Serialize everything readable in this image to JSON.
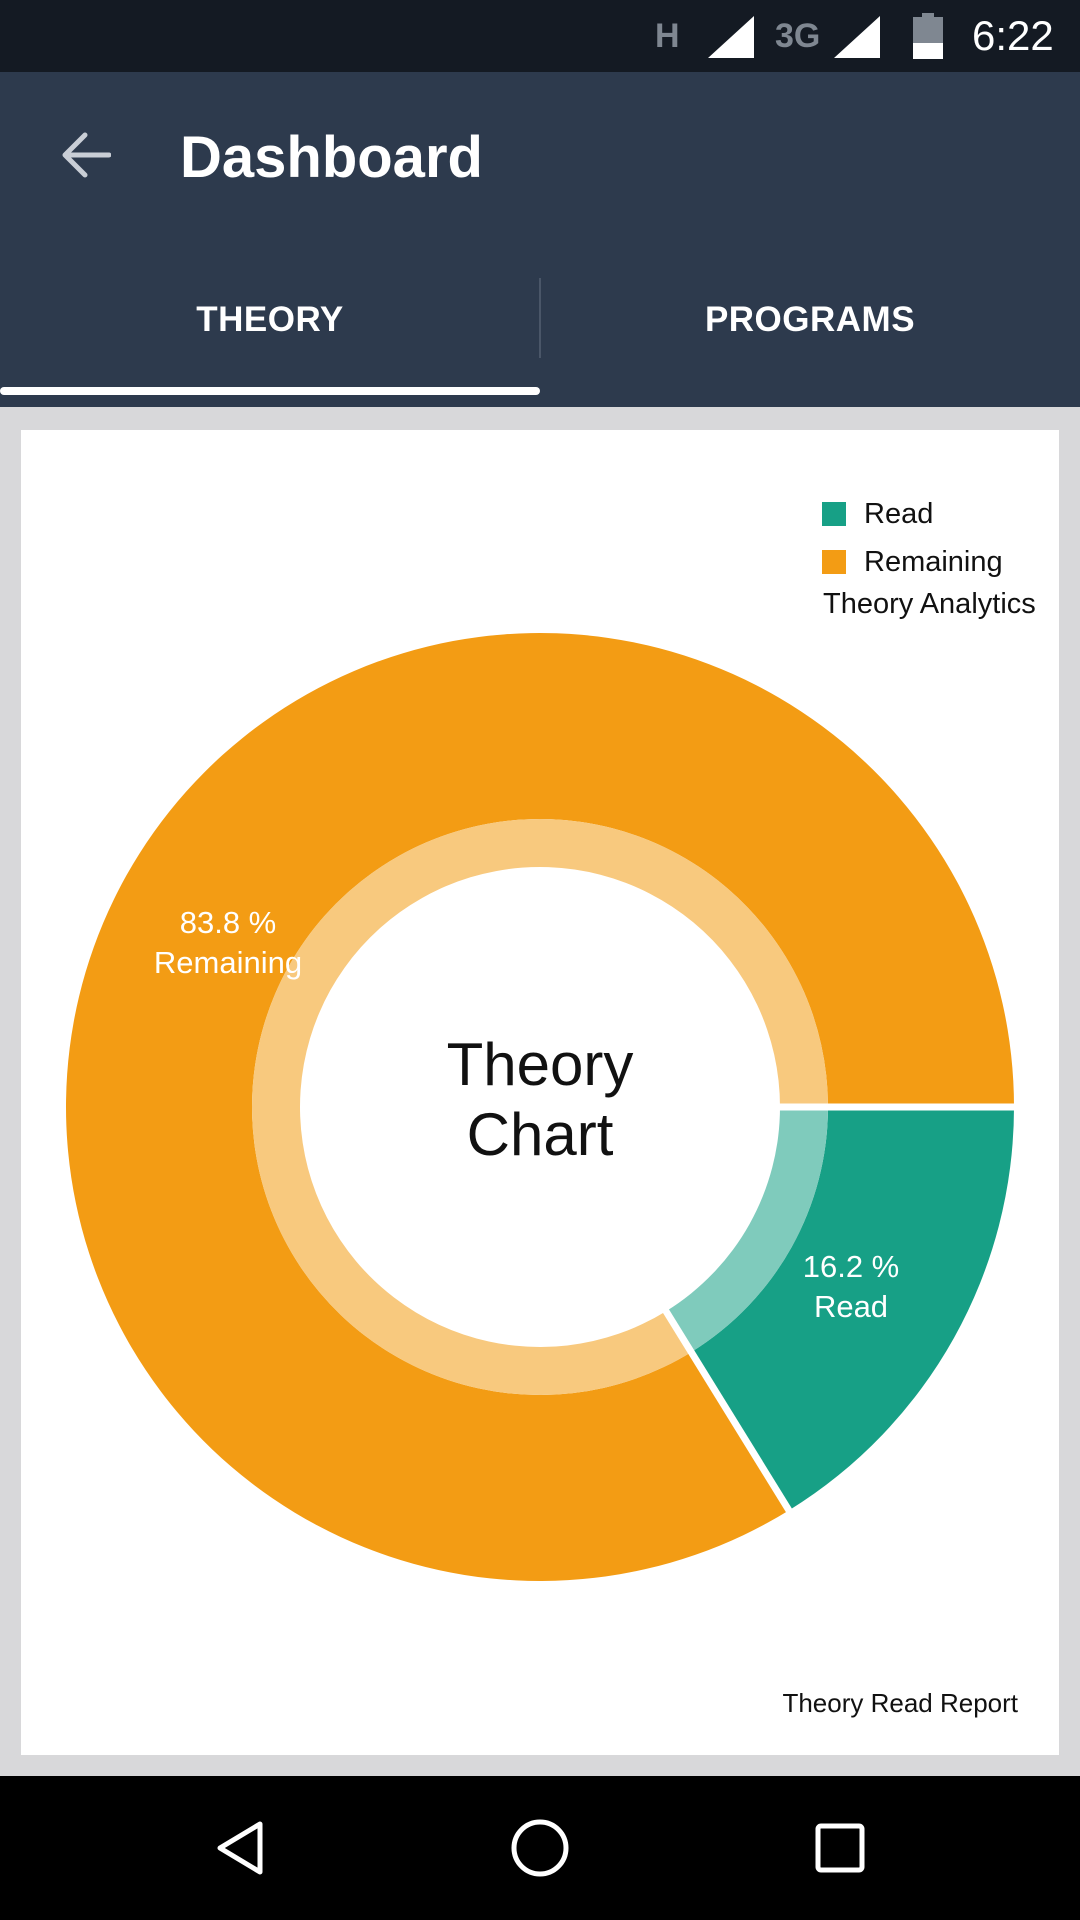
{
  "status_bar": {
    "network_h": "H",
    "network_3g": "3G",
    "time": "6:22",
    "icons": [
      "signal-icon",
      "signal-icon",
      "battery-icon"
    ]
  },
  "app_bar": {
    "title": "Dashboard",
    "back_icon": "arrow-back-icon"
  },
  "tabs": [
    {
      "label": "THEORY",
      "selected": true
    },
    {
      "label": "PROGRAMS",
      "selected": false
    }
  ],
  "chart_data": {
    "type": "pie",
    "variant": "donut",
    "center_text_lines": [
      "Theory",
      "Chart"
    ],
    "legend_description": "Theory Analytics",
    "description": "Theory Read Report",
    "legend_position": "top-right",
    "slices": [
      {
        "label": "Read",
        "value": 16.2,
        "value_label": "16.2 %",
        "color": "#17a086"
      },
      {
        "label": "Remaining",
        "value": 83.8,
        "value_label": "83.8 %",
        "color": "#f39c14"
      }
    ]
  },
  "nav_bar": {
    "icons": [
      "nav-back-icon",
      "nav-home-icon",
      "nav-recent-apps-icon"
    ]
  },
  "colors": {
    "status_bar": "#141a23",
    "app_bar": "#2d3a4d",
    "background": "#d8d8da",
    "read": "#17a086",
    "remaining": "#f39c14"
  }
}
